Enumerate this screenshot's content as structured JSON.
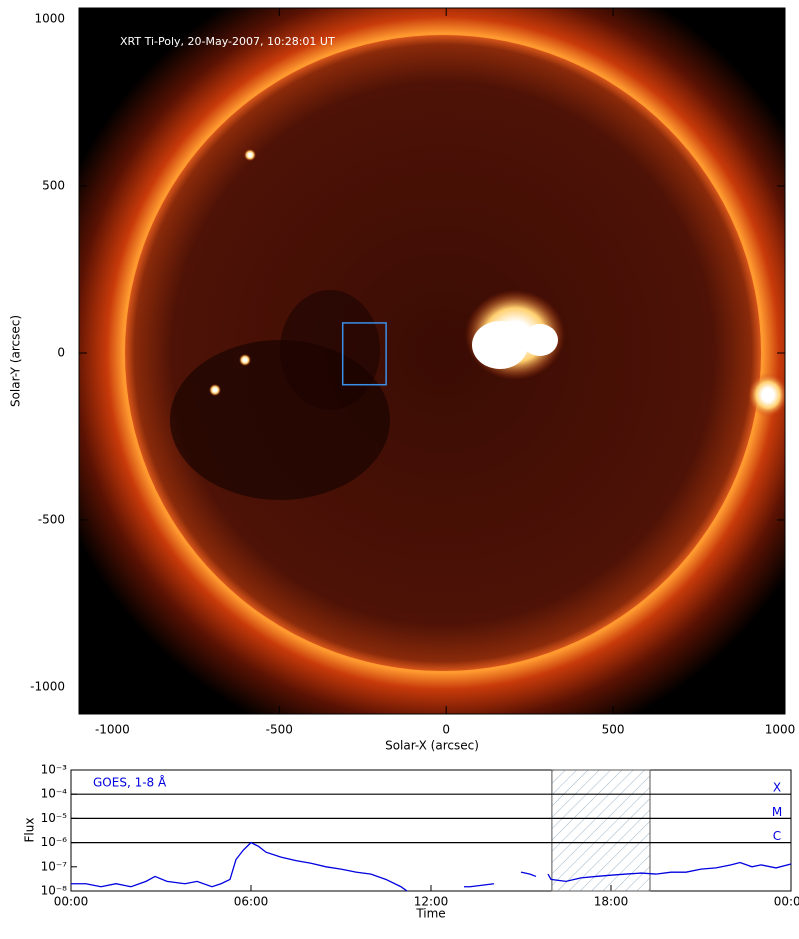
{
  "chart_data": [
    {
      "type": "image",
      "annotation": "XRT Ti-Poly, 20-May-2007, 10:28:01 UT",
      "xlabel": "Solar-X (arcsec)",
      "ylabel": "Solar-Y (arcsec)",
      "xlim": [
        -1100,
        1015
      ],
      "ylim": [
        -1081,
        1033
      ],
      "xticks": [
        -1000,
        -500,
        0,
        500,
        1000
      ],
      "yticks": [
        1000,
        500,
        0,
        -500,
        -1000
      ],
      "box": {
        "x": [
          -310,
          -180
        ],
        "y": [
          -95,
          90
        ],
        "color": "#3a8fe8"
      }
    },
    {
      "type": "line",
      "legend": "GOES, 1-8 Å",
      "xlabel": "Time",
      "ylabel": "Flux",
      "log_y": true,
      "xlim": [
        0,
        24
      ],
      "ylim": [
        1e-08,
        0.001
      ],
      "xticks": [
        {
          "value": 0,
          "label": "00:00"
        },
        {
          "value": 6,
          "label": "06:00"
        },
        {
          "value": 12,
          "label": "12:00"
        },
        {
          "value": 18,
          "label": "18:00"
        },
        {
          "value": 24,
          "label": "00:00"
        }
      ],
      "yticks": [
        {
          "value": 1e-08,
          "label": "10⁻⁸"
        },
        {
          "value": 1e-07,
          "label": "10⁻⁷"
        },
        {
          "value": 1e-06,
          "label": "10⁻⁶"
        },
        {
          "value": 1e-05,
          "label": "10⁻⁵"
        },
        {
          "value": 0.0001,
          "label": "10⁻⁴"
        },
        {
          "value": 0.001,
          "label": "10⁻³"
        }
      ],
      "classes": [
        {
          "label": "X",
          "value": 0.0001
        },
        {
          "label": "M",
          "value": 1e-05
        },
        {
          "label": "C",
          "value": 1e-06
        }
      ],
      "highlight_x": [
        16.03,
        19.3
      ],
      "series": [
        {
          "name": "GOES, 1-8 Å",
          "color": "#0000e0",
          "x": [
            0,
            0.5,
            1,
            1.5,
            2,
            2.5,
            2.8,
            3.2,
            3.8,
            4.2,
            4.7,
            5,
            5.3,
            5.5,
            5.75,
            6,
            6.25,
            6.5,
            7,
            7.5,
            8,
            8.5,
            9,
            9.5,
            10,
            10.5,
            11,
            11.2,
            12,
            13.1,
            13.3,
            14.1,
            14.6,
            15,
            15.3,
            15.5,
            15.7,
            15.9,
            16,
            16.5,
            17,
            17.5,
            18,
            18.5,
            19,
            19.5,
            20,
            20.5,
            21,
            21.5,
            22,
            22.3,
            22.7,
            23,
            23.5,
            24
          ],
          "values": [
            2e-08,
            2e-08,
            1.5e-08,
            2e-08,
            1.5e-08,
            2.5e-08,
            4e-08,
            2.5e-08,
            2e-08,
            2.5e-08,
            1.5e-08,
            2e-08,
            3e-08,
            2e-07,
            5e-07,
            1e-06,
            7e-07,
            4e-07,
            2.5e-07,
            1.8e-07,
            1.4e-07,
            1e-07,
            8e-08,
            6e-08,
            5e-08,
            3e-08,
            1.5e-08,
            1e-08,
            null,
            1.5e-08,
            1.5e-08,
            2e-08,
            null,
            6e-08,
            5e-08,
            4e-08,
            null,
            5e-08,
            3e-08,
            2.5e-08,
            3.5e-08,
            4e-08,
            4.5e-08,
            5e-08,
            5.5e-08,
            5e-08,
            6e-08,
            6e-08,
            8e-08,
            9e-08,
            1.2e-07,
            1.5e-07,
            1e-07,
            1.2e-07,
            9e-08,
            1.3e-07
          ]
        }
      ]
    }
  ]
}
